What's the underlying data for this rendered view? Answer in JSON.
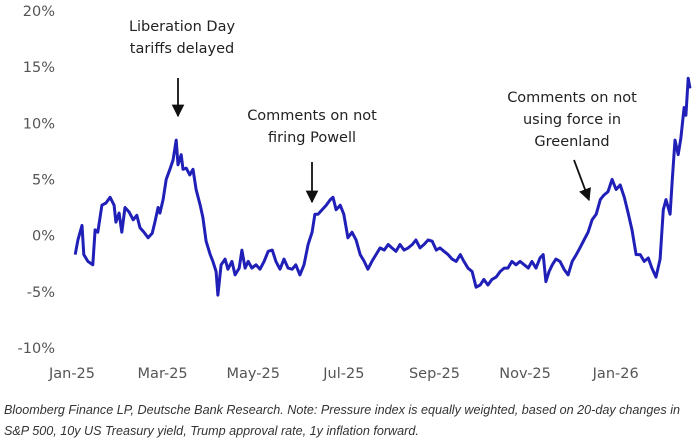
{
  "chart_data": {
    "type": "line",
    "note": "Bloomberg Finance LP, Deutsche Bank Research. Note: Pressure index is equally weighted, based on 20-day changes in S&P 500, 10y US Treasury yield, Trump approval rate, 1y inflation forward.",
    "annotations": [
      {
        "lines": [
          "Liberation Day",
          "tariffs delayed"
        ]
      },
      {
        "lines": [
          "Comments on not",
          "firing Powell"
        ]
      },
      {
        "lines": [
          "Comments on not",
          "using force in",
          "Greenland"
        ]
      }
    ],
    "xlim": [
      0,
      13.64
    ],
    "xticks": [
      {
        "value": 0,
        "label": "Jan-25"
      },
      {
        "value": 2,
        "label": "Mar-25"
      },
      {
        "value": 4,
        "label": "May-25"
      },
      {
        "value": 6,
        "label": "Jul-25"
      },
      {
        "value": 8,
        "label": "Sep-25"
      },
      {
        "value": 10,
        "label": "Nov-25"
      },
      {
        "value": 12,
        "label": "Jan-26"
      }
    ],
    "ylim": [
      -10,
      20
    ],
    "yticks": [
      {
        "value": -10,
        "label": "-10%"
      },
      {
        "value": -5,
        "label": "-5%"
      },
      {
        "value": 0,
        "label": "0%"
      },
      {
        "value": 5,
        "label": "5%"
      },
      {
        "value": 10,
        "label": "10%"
      },
      {
        "value": 15,
        "label": "15%"
      },
      {
        "value": 20,
        "label": "20%"
      }
    ],
    "color": "#2020b8",
    "x": [
      0.07,
      0.13,
      0.22,
      0.26,
      0.35,
      0.46,
      0.51,
      0.57,
      0.66,
      0.75,
      0.84,
      0.93,
      0.97,
      1.04,
      1.1,
      1.17,
      1.26,
      1.35,
      1.43,
      1.5,
      1.59,
      1.68,
      1.77,
      1.83,
      1.9,
      1.94,
      2.01,
      2.08,
      2.16,
      2.23,
      2.3,
      2.34,
      2.41,
      2.45,
      2.52,
      2.6,
      2.67,
      2.74,
      2.83,
      2.89,
      2.96,
      3.05,
      3.11,
      3.18,
      3.22,
      3.29,
      3.38,
      3.44,
      3.53,
      3.6,
      3.69,
      3.75,
      3.82,
      3.89,
      3.97,
      4.06,
      4.15,
      4.24,
      4.33,
      4.42,
      4.5,
      4.59,
      4.68,
      4.77,
      4.86,
      4.94,
      5.03,
      5.12,
      5.21,
      5.3,
      5.36,
      5.43,
      5.52,
      5.61,
      5.7,
      5.76,
      5.83,
      5.92,
      6.0,
      6.09,
      6.18,
      6.27,
      6.36,
      6.45,
      6.53,
      6.62,
      6.71,
      6.8,
      6.89,
      6.98,
      7.06,
      7.15,
      7.24,
      7.33,
      7.42,
      7.51,
      7.59,
      7.68,
      7.77,
      7.86,
      7.95,
      8.04,
      8.12,
      8.21,
      8.3,
      8.39,
      8.48,
      8.57,
      8.65,
      8.74,
      8.83,
      8.92,
      9.01,
      9.09,
      9.18,
      9.27,
      9.36,
      9.45,
      9.54,
      9.62,
      9.71,
      9.8,
      9.89,
      9.98,
      10.07,
      10.15,
      10.24,
      10.33,
      10.4,
      10.46,
      10.53,
      10.6,
      10.68,
      10.77,
      10.86,
      10.95,
      11.04,
      11.13,
      11.21,
      11.3,
      11.39,
      11.48,
      11.57,
      11.66,
      11.74,
      11.83,
      11.92,
      12.01,
      12.1,
      12.19,
      12.27,
      12.36,
      12.45,
      12.54,
      12.63,
      12.72,
      12.8,
      12.89,
      12.98,
      13.05,
      13.11,
      13.2,
      13.25,
      13.31,
      13.38,
      13.44,
      13.51,
      13.55,
      13.6,
      13.64
    ],
    "values": [
      -1.6,
      -0.3,
      1.0,
      -1.6,
      -2.2,
      -2.5,
      0.6,
      0.4,
      2.8,
      3.0,
      3.5,
      2.8,
      1.3,
      2.1,
      0.4,
      2.6,
      2.2,
      1.5,
      1.9,
      0.8,
      0.4,
      -0.1,
      0.3,
      1.3,
      2.6,
      2.1,
      3.3,
      5.1,
      6.0,
      6.8,
      8.6,
      6.4,
      7.3,
      6.0,
      6.1,
      5.5,
      6.0,
      4.2,
      2.8,
      1.7,
      -0.4,
      -1.6,
      -2.2,
      -3.1,
      -5.2,
      -2.5,
      -2.0,
      -2.9,
      -2.2,
      -3.4,
      -2.8,
      -1.2,
      -2.8,
      -2.2,
      -2.8,
      -2.5,
      -2.9,
      -2.2,
      -1.3,
      -1.2,
      -2.2,
      -2.9,
      -2.0,
      -2.8,
      -2.9,
      -2.5,
      -3.4,
      -2.5,
      -0.7,
      0.4,
      2.0,
      2.0,
      2.4,
      2.8,
      3.3,
      3.5,
      2.4,
      2.8,
      2.0,
      -0.1,
      0.4,
      -0.3,
      -1.6,
      -2.2,
      -2.9,
      -2.2,
      -1.6,
      -1.0,
      -1.2,
      -0.7,
      -1.0,
      -1.3,
      -0.7,
      -1.2,
      -1.0,
      -0.7,
      -0.3,
      -1.0,
      -0.7,
      -0.3,
      -0.4,
      -1.2,
      -1.0,
      -1.3,
      -1.6,
      -2.0,
      -2.2,
      -1.6,
      -2.2,
      -2.8,
      -3.1,
      -4.5,
      -4.3,
      -3.8,
      -4.3,
      -3.8,
      -3.6,
      -3.1,
      -2.8,
      -2.8,
      -2.2,
      -2.5,
      -2.2,
      -2.5,
      -2.8,
      -2.2,
      -2.8,
      -1.9,
      -1.6,
      -4.0,
      -3.1,
      -2.5,
      -2.0,
      -2.2,
      -2.9,
      -3.4,
      -2.2,
      -1.6,
      -1.0,
      -0.3,
      0.4,
      1.5,
      2.0,
      3.3,
      3.7,
      4.0,
      5.1,
      4.2,
      4.6,
      3.5,
      2.2,
      0.6,
      -1.6,
      -1.6,
      -2.2,
      -1.9,
      -2.8,
      -3.6,
      -2.0,
      2.4,
      3.3,
      2.0,
      5.1,
      8.6,
      7.3,
      8.8,
      11.5,
      10.8,
      14.1,
      13.2
    ]
  }
}
